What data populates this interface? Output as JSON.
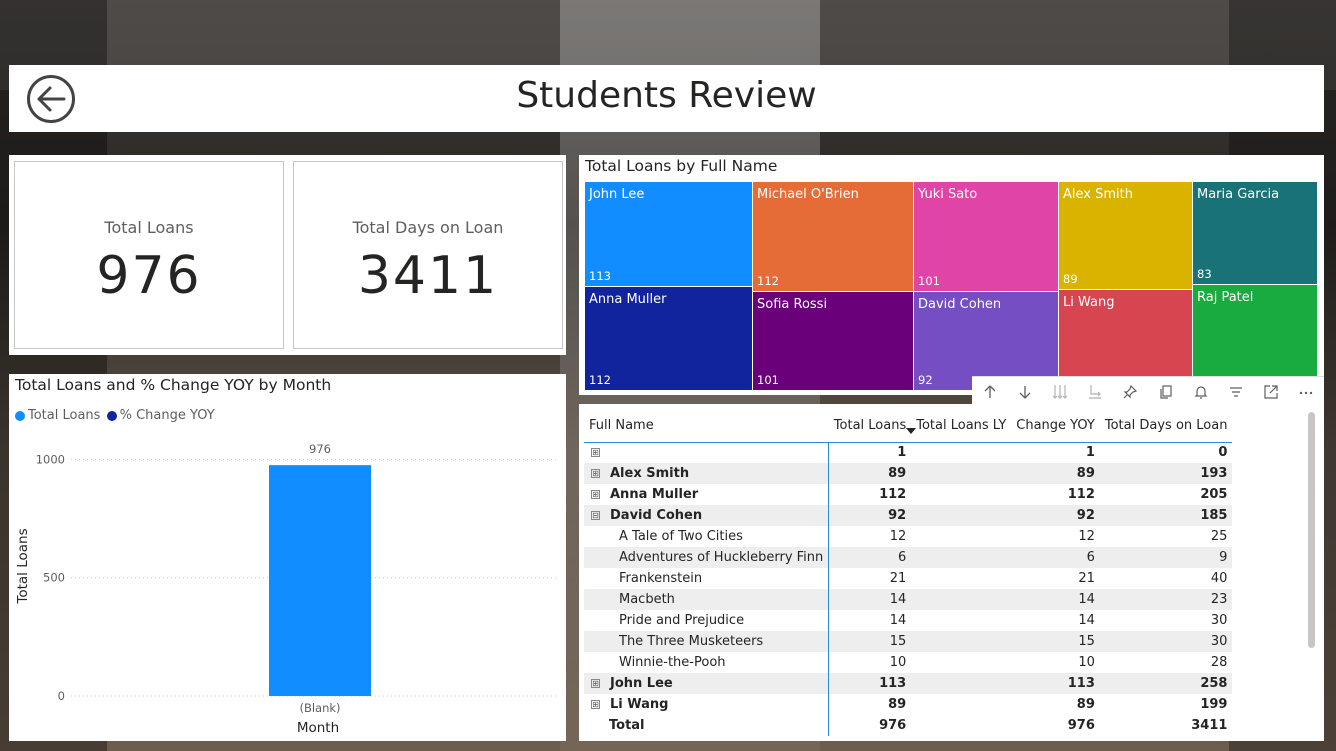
{
  "header": {
    "title": "Students Review",
    "back_icon": "back-arrow-icon"
  },
  "kpis": [
    {
      "label": "Total Loans",
      "value": "976"
    },
    {
      "label": "Total Days on Loan",
      "value": "3411"
    }
  ],
  "bar_visual": {
    "title": "Total Loans and % Change YOY by Month",
    "legend": [
      {
        "name": "Total Loans",
        "color": "#118dff"
      },
      {
        "name": "% Change YOY",
        "color": "#12239e"
      }
    ]
  },
  "chart_data": {
    "type": "bar",
    "categories": [
      "(Blank)"
    ],
    "values": [
      976
    ],
    "data_labels": [
      "976"
    ],
    "xlabel": "Month",
    "ylabel": "Total Loans",
    "yticks": [
      "0",
      "500",
      "1000"
    ],
    "ylim": [
      0,
      1150
    ],
    "grid": true,
    "legend": "top-left",
    "bar_color": "#118dff"
  },
  "treemap": {
    "title": "Total Loans by Full Name",
    "cells": [
      {
        "name": "John Lee",
        "value": "113",
        "color": "#118dff"
      },
      {
        "name": "Anna Muller",
        "value": "112",
        "color": "#12239e"
      },
      {
        "name": "Michael O'Brien",
        "value": "112",
        "color": "#e66c37"
      },
      {
        "name": "Sofia Rossi",
        "value": "101",
        "color": "#6b007b"
      },
      {
        "name": "Yuki Sato",
        "value": "101",
        "color": "#e044a7"
      },
      {
        "name": "David Cohen",
        "value": "92",
        "color": "#744ec2"
      },
      {
        "name": "Alex Smith",
        "value": "89",
        "color": "#d9b300"
      },
      {
        "name": "Li Wang",
        "value": "",
        "color": "#d64550"
      },
      {
        "name": "Maria Garcia",
        "value": "83",
        "color": "#197278"
      },
      {
        "name": "Raj Patel",
        "value": "",
        "color": "#1aab40"
      }
    ]
  },
  "toolbar": {
    "icons": [
      "drill-up-icon",
      "drill-down-icon",
      "expand-all-icon",
      "expand-next-level-icon",
      "pin-icon",
      "copy-icon",
      "alert-icon",
      "filter-icon",
      "focus-mode-icon",
      "more-options-icon"
    ]
  },
  "matrix": {
    "columns": [
      "Full Name",
      "Total Loans",
      "Total Loans LY",
      "Change YOY",
      "Total Days on Loan"
    ],
    "rows": [
      {
        "level": 0,
        "expander": "⊞",
        "name": "",
        "cells": [
          "1",
          "",
          "1",
          "0"
        ]
      },
      {
        "level": 0,
        "expander": "⊞",
        "name": "Alex Smith",
        "cells": [
          "89",
          "",
          "89",
          "193"
        ]
      },
      {
        "level": 0,
        "expander": "⊞",
        "name": "Anna Muller",
        "cells": [
          "112",
          "",
          "112",
          "205"
        ]
      },
      {
        "level": 0,
        "expander": "⊟",
        "name": "David Cohen",
        "cells": [
          "92",
          "",
          "92",
          "185"
        ]
      },
      {
        "level": 1,
        "expander": "",
        "name": "A Tale of Two Cities",
        "cells": [
          "12",
          "",
          "12",
          "25"
        ]
      },
      {
        "level": 1,
        "expander": "",
        "name": "Adventures of Huckleberry Finn",
        "cells": [
          "6",
          "",
          "6",
          "9"
        ]
      },
      {
        "level": 1,
        "expander": "",
        "name": "Frankenstein",
        "cells": [
          "21",
          "",
          "21",
          "40"
        ]
      },
      {
        "level": 1,
        "expander": "",
        "name": "Macbeth",
        "cells": [
          "14",
          "",
          "14",
          "23"
        ]
      },
      {
        "level": 1,
        "expander": "",
        "name": "Pride and Prejudice",
        "cells": [
          "14",
          "",
          "14",
          "30"
        ]
      },
      {
        "level": 1,
        "expander": "",
        "name": "The Three Musketeers",
        "cells": [
          "15",
          "",
          "15",
          "30"
        ]
      },
      {
        "level": 1,
        "expander": "",
        "name": "Winnie-the-Pooh",
        "cells": [
          "10",
          "",
          "10",
          "28"
        ]
      },
      {
        "level": 0,
        "expander": "⊞",
        "name": "John Lee",
        "cells": [
          "113",
          "",
          "113",
          "258"
        ]
      },
      {
        "level": 0,
        "expander": "⊞",
        "name": "Li Wang",
        "cells": [
          "89",
          "",
          "89",
          "199"
        ]
      }
    ],
    "total": {
      "name": "Total",
      "cells": [
        "976",
        "",
        "976",
        "3411"
      ]
    }
  }
}
